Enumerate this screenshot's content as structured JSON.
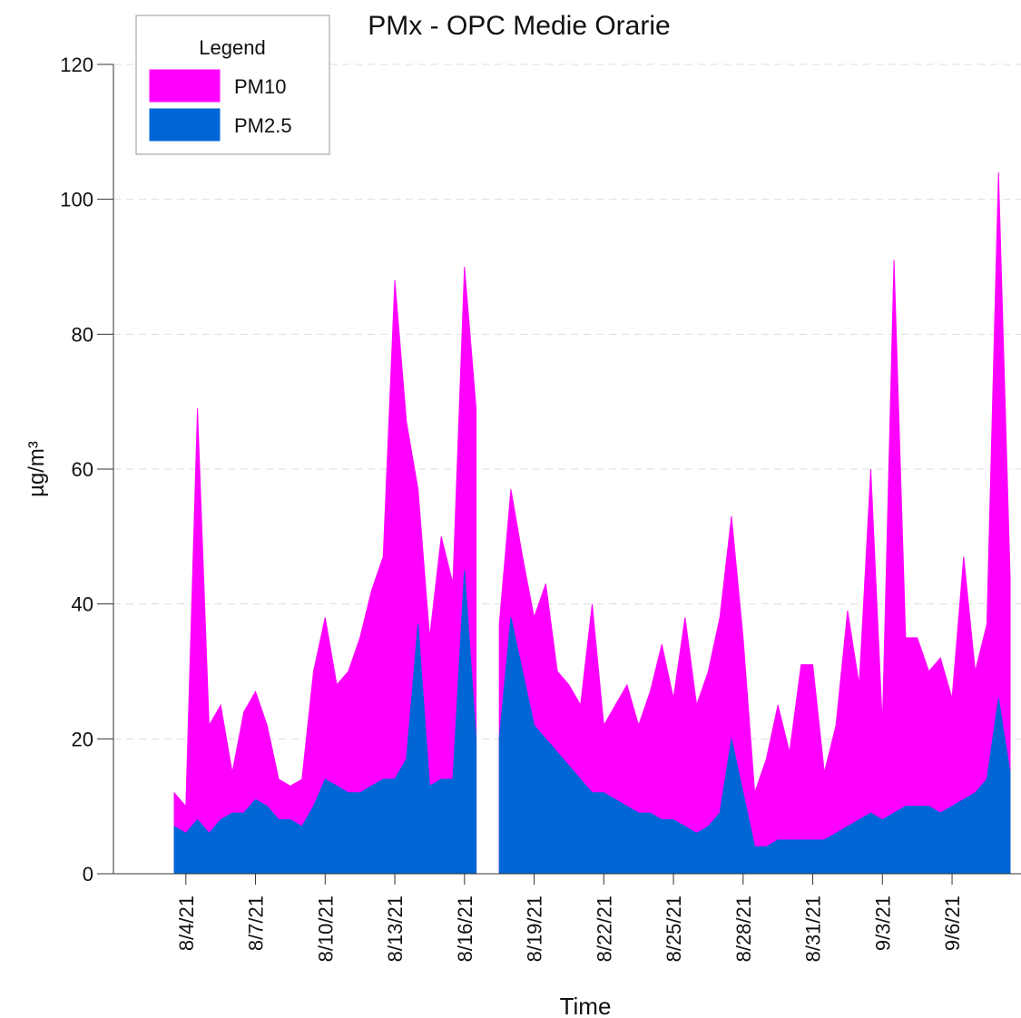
{
  "chart_data": {
    "type": "area",
    "title": "PMx - OPC Medie Orarie",
    "x_label": "Time",
    "y_label": "µg/m³",
    "legend_title": "Legend",
    "legend_position": "upper left",
    "grid": true,
    "categories": [
      null,
      "8/4/21",
      null,
      null,
      null,
      null,
      null,
      "8/7/21",
      null,
      null,
      null,
      null,
      null,
      "8/10/21",
      null,
      null,
      null,
      null,
      null,
      "8/13/21",
      null,
      null,
      null,
      null,
      null,
      "8/16/21",
      null,
      null,
      null,
      null,
      null,
      "8/19/21",
      null,
      null,
      null,
      null,
      null,
      "8/22/21",
      null,
      null,
      null,
      null,
      null,
      "8/25/21",
      null,
      null,
      null,
      null,
      null,
      "8/28/21",
      null,
      null,
      null,
      null,
      null,
      "8/31/21",
      null,
      null,
      null,
      null,
      null,
      "9/3/21",
      null,
      null,
      null,
      null,
      null,
      "9/6/21",
      null,
      null,
      null,
      null,
      null
    ],
    "series": [
      {
        "name": "PM10",
        "color": "#ff00ff",
        "values": [
          12,
          10,
          69,
          22,
          25,
          15,
          24,
          27,
          22,
          14,
          13,
          14,
          30,
          38,
          28,
          30,
          35,
          42,
          47,
          88,
          67,
          57,
          35,
          50,
          43,
          90,
          69,
          null,
          37,
          57,
          47,
          38,
          43,
          30,
          28,
          25,
          40,
          22,
          25,
          28,
          22,
          27,
          34,
          26,
          38,
          25,
          30,
          38,
          53,
          35,
          12,
          17,
          25,
          18,
          31,
          31,
          15,
          22,
          39,
          28,
          60,
          22,
          91,
          35,
          35,
          30,
          32,
          26,
          47,
          30,
          37,
          104,
          44
        ]
      },
      {
        "name": "PM2.5",
        "color": "#0066d6",
        "values": [
          7,
          6,
          8,
          6,
          8,
          9,
          9,
          11,
          10,
          8,
          8,
          7,
          10,
          14,
          13,
          12,
          12,
          13,
          14,
          14,
          17,
          37,
          13,
          14,
          14,
          45,
          20,
          null,
          20,
          38,
          30,
          22,
          20,
          18,
          16,
          14,
          12,
          12,
          11,
          10,
          9,
          9,
          8,
          8,
          7,
          6,
          7,
          9,
          20,
          12,
          4,
          4,
          5,
          5,
          5,
          5,
          5,
          6,
          7,
          8,
          9,
          8,
          9,
          10,
          10,
          10,
          9,
          10,
          11,
          12,
          14,
          26,
          15
        ]
      }
    ],
    "ylim": [
      0,
      120
    ],
    "yticks": [
      0,
      20,
      40,
      60,
      80,
      100,
      120
    ]
  }
}
